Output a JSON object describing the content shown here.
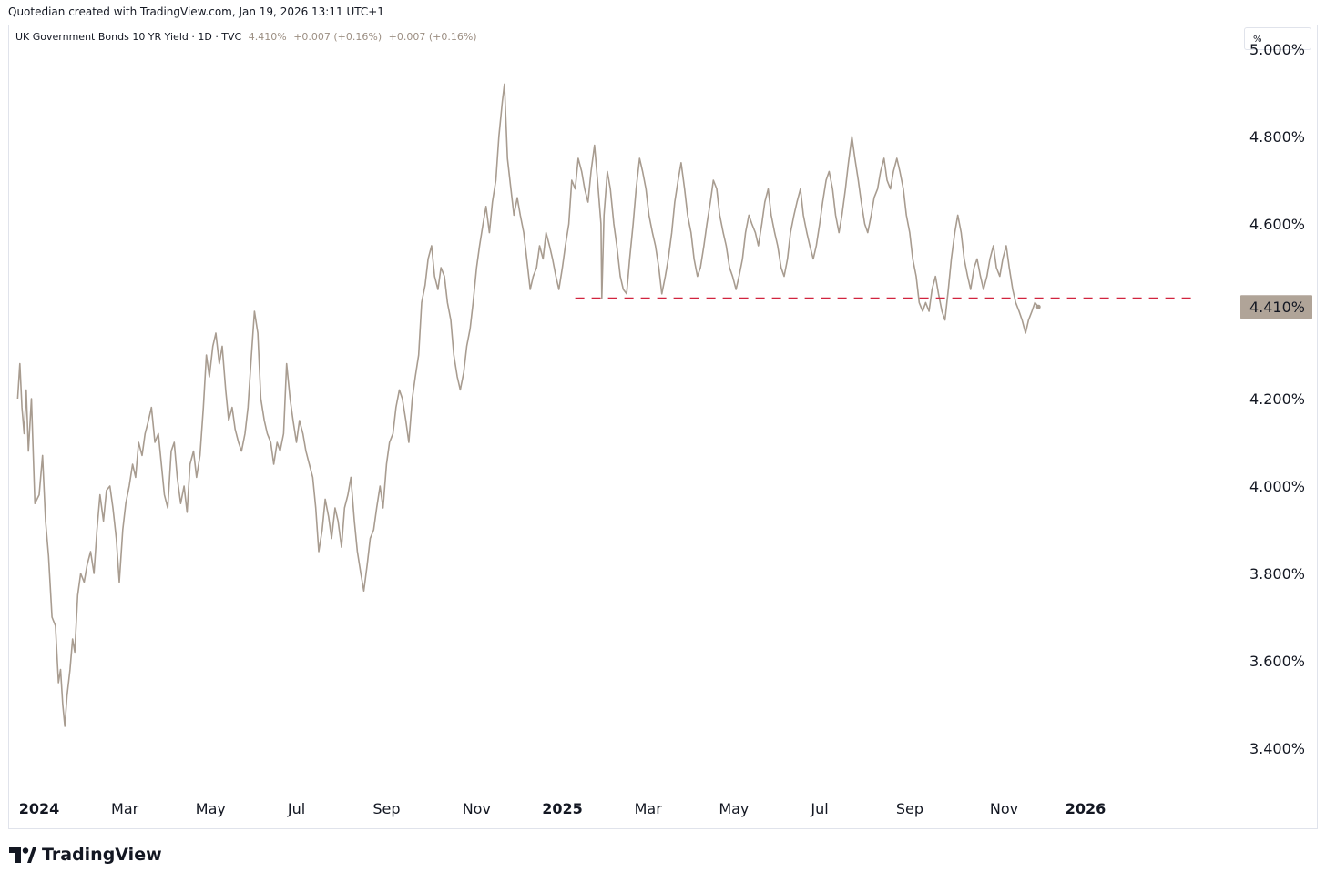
{
  "header": {
    "credit": "Quotedian created with TradingView.com, Jan 19, 2026 13:11 UTC+1"
  },
  "legend": {
    "symbol": "UK Government Bonds 10 YR Yield · 1D · TVC",
    "last": "4.410%",
    "change1": "+0.007 (+0.16%)",
    "change2": "+0.007 (+0.16%)"
  },
  "unit_label": "%",
  "footer": {
    "brand": "TradingView",
    "logo_icon": "tradingview-logo-icon"
  },
  "colors": {
    "series": "#a89c90",
    "support_line": "#d1243f",
    "price_tag_bg": "#b0a498",
    "axis_text": "#131722"
  },
  "chart_data": {
    "type": "line",
    "title": "UK Government Bonds 10 YR Yield",
    "x_ticks": [
      {
        "label": "2024",
        "t": 0.5,
        "bold": true
      },
      {
        "label": "Mar",
        "t": 2.5
      },
      {
        "label": "May",
        "t": 4.5
      },
      {
        "label": "Jul",
        "t": 6.5
      },
      {
        "label": "Sep",
        "t": 8.6
      },
      {
        "label": "Nov",
        "t": 10.7
      },
      {
        "label": "2025",
        "t": 12.7,
        "bold": true
      },
      {
        "label": "Mar",
        "t": 14.7
      },
      {
        "label": "May",
        "t": 16.7
      },
      {
        "label": "Jul",
        "t": 18.7
      },
      {
        "label": "Sep",
        "t": 20.8
      },
      {
        "label": "Nov",
        "t": 23.0
      },
      {
        "label": "2026",
        "t": 24.9,
        "bold": true
      }
    ],
    "y_ticks": [
      {
        "value": 5.0,
        "label": "5.000%"
      },
      {
        "value": 4.8,
        "label": "4.800%"
      },
      {
        "value": 4.6,
        "label": "4.600%"
      },
      {
        "value": 4.2,
        "label": "4.200%"
      },
      {
        "value": 4.0,
        "label": "4.000%"
      },
      {
        "value": 3.8,
        "label": "3.800%"
      },
      {
        "value": 3.6,
        "label": "3.600%"
      },
      {
        "value": 3.4,
        "label": "3.400%"
      }
    ],
    "ylim": [
      3.3,
      5.05
    ],
    "xlim": [
      -0.2,
      28.0
    ],
    "last_value": 4.41,
    "last_label": "4.410%",
    "support_level": 4.43,
    "support_range": [
      13.0,
      27.5
    ],
    "x_units": "months since Dec 2023",
    "y_units": "percent",
    "points": [
      [
        0.0,
        4.2
      ],
      [
        0.05,
        4.28
      ],
      [
        0.1,
        4.18
      ],
      [
        0.15,
        4.12
      ],
      [
        0.2,
        4.22
      ],
      [
        0.25,
        4.08
      ],
      [
        0.32,
        4.2
      ],
      [
        0.4,
        3.96
      ],
      [
        0.5,
        3.98
      ],
      [
        0.58,
        4.07
      ],
      [
        0.65,
        3.92
      ],
      [
        0.72,
        3.84
      ],
      [
        0.8,
        3.7
      ],
      [
        0.88,
        3.68
      ],
      [
        0.95,
        3.55
      ],
      [
        1.0,
        3.58
      ],
      [
        1.05,
        3.5
      ],
      [
        1.1,
        3.45
      ],
      [
        1.15,
        3.52
      ],
      [
        1.22,
        3.58
      ],
      [
        1.28,
        3.65
      ],
      [
        1.33,
        3.62
      ],
      [
        1.4,
        3.75
      ],
      [
        1.47,
        3.8
      ],
      [
        1.55,
        3.78
      ],
      [
        1.62,
        3.82
      ],
      [
        1.7,
        3.85
      ],
      [
        1.78,
        3.8
      ],
      [
        1.85,
        3.9
      ],
      [
        1.92,
        3.98
      ],
      [
        2.0,
        3.92
      ],
      [
        2.07,
        3.99
      ],
      [
        2.15,
        4.0
      ],
      [
        2.22,
        3.95
      ],
      [
        2.3,
        3.88
      ],
      [
        2.37,
        3.78
      ],
      [
        2.45,
        3.9
      ],
      [
        2.52,
        3.96
      ],
      [
        2.6,
        4.0
      ],
      [
        2.68,
        4.05
      ],
      [
        2.75,
        4.02
      ],
      [
        2.82,
        4.1
      ],
      [
        2.9,
        4.07
      ],
      [
        2.97,
        4.12
      ],
      [
        3.05,
        4.15
      ],
      [
        3.12,
        4.18
      ],
      [
        3.2,
        4.1
      ],
      [
        3.28,
        4.12
      ],
      [
        3.35,
        4.05
      ],
      [
        3.42,
        3.98
      ],
      [
        3.5,
        3.95
      ],
      [
        3.58,
        4.08
      ],
      [
        3.65,
        4.1
      ],
      [
        3.72,
        4.02
      ],
      [
        3.8,
        3.96
      ],
      [
        3.88,
        4.0
      ],
      [
        3.95,
        3.94
      ],
      [
        4.02,
        4.05
      ],
      [
        4.1,
        4.08
      ],
      [
        4.17,
        4.02
      ],
      [
        4.25,
        4.07
      ],
      [
        4.33,
        4.18
      ],
      [
        4.4,
        4.3
      ],
      [
        4.47,
        4.25
      ],
      [
        4.55,
        4.32
      ],
      [
        4.62,
        4.35
      ],
      [
        4.7,
        4.28
      ],
      [
        4.77,
        4.32
      ],
      [
        4.85,
        4.22
      ],
      [
        4.92,
        4.15
      ],
      [
        5.0,
        4.18
      ],
      [
        5.07,
        4.13
      ],
      [
        5.15,
        4.1
      ],
      [
        5.22,
        4.08
      ],
      [
        5.3,
        4.12
      ],
      [
        5.37,
        4.18
      ],
      [
        5.45,
        4.3
      ],
      [
        5.52,
        4.4
      ],
      [
        5.6,
        4.35
      ],
      [
        5.67,
        4.2
      ],
      [
        5.75,
        4.15
      ],
      [
        5.82,
        4.12
      ],
      [
        5.9,
        4.1
      ],
      [
        5.97,
        4.05
      ],
      [
        6.05,
        4.1
      ],
      [
        6.12,
        4.08
      ],
      [
        6.2,
        4.12
      ],
      [
        6.27,
        4.28
      ],
      [
        6.35,
        4.2
      ],
      [
        6.42,
        4.15
      ],
      [
        6.5,
        4.1
      ],
      [
        6.57,
        4.15
      ],
      [
        6.65,
        4.12
      ],
      [
        6.72,
        4.08
      ],
      [
        6.8,
        4.05
      ],
      [
        6.88,
        4.02
      ],
      [
        6.95,
        3.95
      ],
      [
        7.02,
        3.85
      ],
      [
        7.1,
        3.9
      ],
      [
        7.17,
        3.97
      ],
      [
        7.25,
        3.93
      ],
      [
        7.32,
        3.88
      ],
      [
        7.4,
        3.95
      ],
      [
        7.47,
        3.92
      ],
      [
        7.55,
        3.86
      ],
      [
        7.62,
        3.95
      ],
      [
        7.7,
        3.98
      ],
      [
        7.77,
        4.02
      ],
      [
        7.85,
        3.92
      ],
      [
        7.92,
        3.85
      ],
      [
        8.0,
        3.8
      ],
      [
        8.07,
        3.76
      ],
      [
        8.15,
        3.82
      ],
      [
        8.22,
        3.88
      ],
      [
        8.3,
        3.9
      ],
      [
        8.37,
        3.95
      ],
      [
        8.45,
        4.0
      ],
      [
        8.52,
        3.95
      ],
      [
        8.6,
        4.05
      ],
      [
        8.67,
        4.1
      ],
      [
        8.75,
        4.12
      ],
      [
        8.82,
        4.18
      ],
      [
        8.9,
        4.22
      ],
      [
        8.97,
        4.2
      ],
      [
        9.05,
        4.15
      ],
      [
        9.12,
        4.1
      ],
      [
        9.2,
        4.2
      ],
      [
        9.27,
        4.25
      ],
      [
        9.35,
        4.3
      ],
      [
        9.42,
        4.42
      ],
      [
        9.5,
        4.46
      ],
      [
        9.57,
        4.52
      ],
      [
        9.65,
        4.55
      ],
      [
        9.72,
        4.48
      ],
      [
        9.8,
        4.45
      ],
      [
        9.87,
        4.5
      ],
      [
        9.95,
        4.48
      ],
      [
        10.02,
        4.42
      ],
      [
        10.1,
        4.38
      ],
      [
        10.17,
        4.3
      ],
      [
        10.25,
        4.25
      ],
      [
        10.32,
        4.22
      ],
      [
        10.4,
        4.26
      ],
      [
        10.47,
        4.32
      ],
      [
        10.55,
        4.36
      ],
      [
        10.62,
        4.42
      ],
      [
        10.7,
        4.5
      ],
      [
        10.77,
        4.55
      ],
      [
        10.85,
        4.6
      ],
      [
        10.92,
        4.64
      ],
      [
        11.0,
        4.58
      ],
      [
        11.07,
        4.65
      ],
      [
        11.15,
        4.7
      ],
      [
        11.22,
        4.8
      ],
      [
        11.3,
        4.88
      ],
      [
        11.35,
        4.92
      ],
      [
        11.42,
        4.75
      ],
      [
        11.5,
        4.68
      ],
      [
        11.57,
        4.62
      ],
      [
        11.65,
        4.66
      ],
      [
        11.72,
        4.62
      ],
      [
        11.8,
        4.58
      ],
      [
        11.87,
        4.52
      ],
      [
        11.95,
        4.45
      ],
      [
        12.02,
        4.48
      ],
      [
        12.1,
        4.5
      ],
      [
        12.17,
        4.55
      ],
      [
        12.25,
        4.52
      ],
      [
        12.32,
        4.58
      ],
      [
        12.4,
        4.55
      ],
      [
        12.47,
        4.52
      ],
      [
        12.55,
        4.48
      ],
      [
        12.62,
        4.45
      ],
      [
        12.7,
        4.5
      ],
      [
        12.77,
        4.55
      ],
      [
        12.85,
        4.6
      ],
      [
        12.92,
        4.7
      ],
      [
        13.0,
        4.68
      ],
      [
        13.07,
        4.75
      ],
      [
        13.15,
        4.72
      ],
      [
        13.22,
        4.68
      ],
      [
        13.3,
        4.65
      ],
      [
        13.37,
        4.72
      ],
      [
        13.45,
        4.78
      ],
      [
        13.52,
        4.7
      ],
      [
        13.6,
        4.6
      ],
      [
        13.62,
        4.43
      ],
      [
        13.67,
        4.62
      ],
      [
        13.75,
        4.72
      ],
      [
        13.82,
        4.68
      ],
      [
        13.9,
        4.6
      ],
      [
        13.97,
        4.55
      ],
      [
        14.05,
        4.48
      ],
      [
        14.12,
        4.45
      ],
      [
        14.2,
        4.44
      ],
      [
        14.27,
        4.52
      ],
      [
        14.35,
        4.6
      ],
      [
        14.42,
        4.68
      ],
      [
        14.5,
        4.75
      ],
      [
        14.57,
        4.72
      ],
      [
        14.65,
        4.68
      ],
      [
        14.72,
        4.62
      ],
      [
        14.8,
        4.58
      ],
      [
        14.87,
        4.55
      ],
      [
        14.95,
        4.5
      ],
      [
        15.02,
        4.44
      ],
      [
        15.1,
        4.48
      ],
      [
        15.17,
        4.52
      ],
      [
        15.25,
        4.58
      ],
      [
        15.32,
        4.65
      ],
      [
        15.4,
        4.7
      ],
      [
        15.47,
        4.74
      ],
      [
        15.55,
        4.68
      ],
      [
        15.62,
        4.62
      ],
      [
        15.7,
        4.58
      ],
      [
        15.77,
        4.52
      ],
      [
        15.85,
        4.48
      ],
      [
        15.92,
        4.5
      ],
      [
        16.0,
        4.55
      ],
      [
        16.07,
        4.6
      ],
      [
        16.15,
        4.65
      ],
      [
        16.22,
        4.7
      ],
      [
        16.3,
        4.68
      ],
      [
        16.37,
        4.62
      ],
      [
        16.45,
        4.58
      ],
      [
        16.52,
        4.55
      ],
      [
        16.6,
        4.5
      ],
      [
        16.67,
        4.48
      ],
      [
        16.75,
        4.45
      ],
      [
        16.82,
        4.48
      ],
      [
        16.9,
        4.52
      ],
      [
        16.97,
        4.58
      ],
      [
        17.05,
        4.62
      ],
      [
        17.12,
        4.6
      ],
      [
        17.2,
        4.58
      ],
      [
        17.27,
        4.55
      ],
      [
        17.35,
        4.6
      ],
      [
        17.42,
        4.65
      ],
      [
        17.5,
        4.68
      ],
      [
        17.57,
        4.62
      ],
      [
        17.65,
        4.58
      ],
      [
        17.72,
        4.55
      ],
      [
        17.8,
        4.5
      ],
      [
        17.87,
        4.48
      ],
      [
        17.95,
        4.52
      ],
      [
        18.02,
        4.58
      ],
      [
        18.1,
        4.62
      ],
      [
        18.17,
        4.65
      ],
      [
        18.25,
        4.68
      ],
      [
        18.32,
        4.62
      ],
      [
        18.4,
        4.58
      ],
      [
        18.47,
        4.55
      ],
      [
        18.55,
        4.52
      ],
      [
        18.62,
        4.55
      ],
      [
        18.7,
        4.6
      ],
      [
        18.77,
        4.65
      ],
      [
        18.85,
        4.7
      ],
      [
        18.92,
        4.72
      ],
      [
        19.0,
        4.68
      ],
      [
        19.07,
        4.62
      ],
      [
        19.15,
        4.58
      ],
      [
        19.22,
        4.62
      ],
      [
        19.3,
        4.68
      ],
      [
        19.37,
        4.74
      ],
      [
        19.45,
        4.8
      ],
      [
        19.52,
        4.75
      ],
      [
        19.6,
        4.7
      ],
      [
        19.67,
        4.65
      ],
      [
        19.75,
        4.6
      ],
      [
        19.82,
        4.58
      ],
      [
        19.9,
        4.62
      ],
      [
        19.97,
        4.66
      ],
      [
        20.05,
        4.68
      ],
      [
        20.12,
        4.72
      ],
      [
        20.2,
        4.75
      ],
      [
        20.27,
        4.7
      ],
      [
        20.35,
        4.68
      ],
      [
        20.42,
        4.72
      ],
      [
        20.5,
        4.75
      ],
      [
        20.57,
        4.72
      ],
      [
        20.65,
        4.68
      ],
      [
        20.72,
        4.62
      ],
      [
        20.8,
        4.58
      ],
      [
        20.87,
        4.52
      ],
      [
        20.95,
        4.48
      ],
      [
        21.02,
        4.42
      ],
      [
        21.1,
        4.4
      ],
      [
        21.17,
        4.42
      ],
      [
        21.25,
        4.4
      ],
      [
        21.32,
        4.45
      ],
      [
        21.4,
        4.48
      ],
      [
        21.47,
        4.44
      ],
      [
        21.55,
        4.4
      ],
      [
        21.62,
        4.38
      ],
      [
        21.7,
        4.45
      ],
      [
        21.77,
        4.52
      ],
      [
        21.85,
        4.58
      ],
      [
        21.92,
        4.62
      ],
      [
        22.0,
        4.58
      ],
      [
        22.07,
        4.52
      ],
      [
        22.15,
        4.48
      ],
      [
        22.22,
        4.45
      ],
      [
        22.3,
        4.5
      ],
      [
        22.37,
        4.52
      ],
      [
        22.45,
        4.48
      ],
      [
        22.52,
        4.45
      ],
      [
        22.6,
        4.48
      ],
      [
        22.67,
        4.52
      ],
      [
        22.75,
        4.55
      ],
      [
        22.82,
        4.5
      ],
      [
        22.9,
        4.48
      ],
      [
        22.97,
        4.52
      ],
      [
        23.05,
        4.55
      ],
      [
        23.12,
        4.5
      ],
      [
        23.2,
        4.45
      ],
      [
        23.27,
        4.42
      ],
      [
        23.35,
        4.4
      ],
      [
        23.42,
        4.38
      ],
      [
        23.5,
        4.35
      ],
      [
        23.57,
        4.38
      ],
      [
        23.65,
        4.4
      ],
      [
        23.72,
        4.42
      ],
      [
        23.8,
        4.41
      ]
    ]
  }
}
